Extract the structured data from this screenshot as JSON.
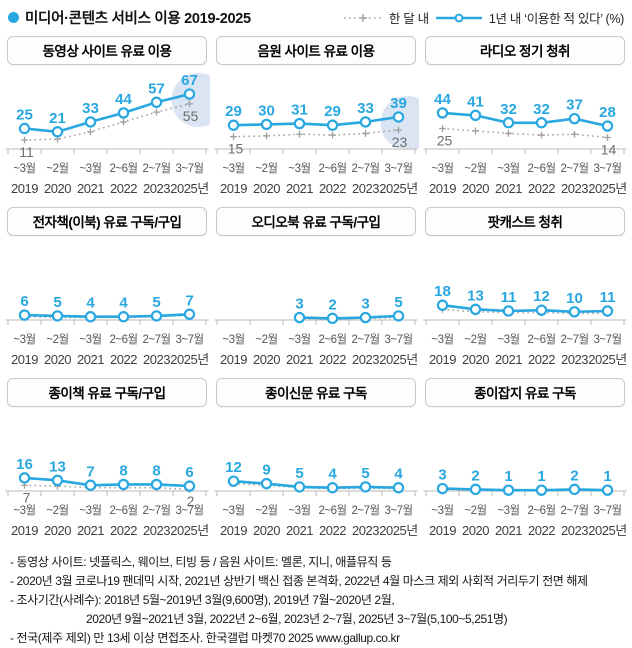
{
  "header": {
    "title": "미디어·콘텐츠 서비스 이용 2019-2025",
    "legend": {
      "dotted_label": "한 달 내",
      "blue_label": "1년 내  ‘이용한 적 있다’ (%)"
    }
  },
  "colors": {
    "blue": "#29a7e1",
    "dotted": "#9f9f9f",
    "dotted_label": "#6e6e6e",
    "highlight": "#dbe4f2",
    "axis": "#c6c6c6",
    "month_label": "#555555",
    "year_label": "#3f3f3f",
    "title_bullet": "#29a7e1"
  },
  "chart_data": {
    "type": "line",
    "unit": "%",
    "categories_month": [
      "~3월",
      "~2월",
      "~3월",
      "2~6월",
      "2~7월",
      "3~7월"
    ],
    "categories_year": [
      "2019",
      "2020",
      "2021",
      "2022",
      "2023",
      "2025년"
    ],
    "series_names": {
      "dotted": "한 달 내",
      "blue": "1년 내 이용한 적 있다"
    },
    "note": "dotted-series values without labels in the chart are estimated from pixel positions",
    "ylim": [
      0,
      80
    ],
    "panels": [
      {
        "title": "동영상 사이트 유료 이용",
        "blue": [
          25,
          21,
          33,
          44,
          57,
          67
        ],
        "dotted": [
          11,
          12,
          21,
          33,
          45,
          55
        ],
        "dotted_label_indices": [
          0,
          5
        ],
        "highlight_last": true
      },
      {
        "title": "음원 사이트 유료 이용",
        "blue": [
          29,
          30,
          31,
          29,
          33,
          39
        ],
        "dotted": [
          15,
          16,
          18,
          17,
          19,
          23
        ],
        "dotted_label_indices": [
          0,
          5
        ],
        "highlight_last": true
      },
      {
        "title": "라디오 정기 청취",
        "blue": [
          44,
          41,
          32,
          32,
          37,
          28
        ],
        "dotted": [
          25,
          22,
          19,
          17,
          18,
          14
        ],
        "dotted_label_indices": [
          0,
          5
        ],
        "highlight_last": false
      },
      {
        "title": "전자책(이북) 유료 구독/구입",
        "blue": [
          6,
          5,
          4,
          4,
          5,
          7
        ],
        "dotted": [
          4,
          3,
          3,
          3,
          4,
          6
        ],
        "dotted_label_indices": [],
        "highlight_last": false
      },
      {
        "title": "오디오북 유료 구독/구입",
        "blue": [
          null,
          null,
          3,
          2,
          3,
          5
        ],
        "dotted": [
          null,
          null,
          2,
          1,
          2,
          3
        ],
        "dotted_label_indices": [],
        "highlight_last": false
      },
      {
        "title": "팟캐스트 청취",
        "blue": [
          18,
          13,
          11,
          12,
          10,
          11
        ],
        "dotted": [
          13,
          10,
          9,
          9,
          8,
          8
        ],
        "dotted_label_indices": [],
        "highlight_last": false
      },
      {
        "title": "종이책 유료 구독/구입",
        "blue": [
          16,
          13,
          7,
          8,
          8,
          6
        ],
        "dotted": [
          7,
          6,
          4,
          4,
          4,
          2
        ],
        "dotted_label_indices": [
          0,
          5
        ],
        "highlight_last": false
      },
      {
        "title": "종이신문 유료 구독",
        "blue": [
          12,
          9,
          5,
          4,
          5,
          4
        ],
        "dotted": [
          9,
          7,
          4,
          3,
          3,
          3
        ],
        "dotted_label_indices": [],
        "highlight_last": false
      },
      {
        "title": "종이잡지 유료 구독",
        "blue": [
          3,
          2,
          1,
          1,
          2,
          1
        ],
        "dotted": [
          2,
          1,
          1,
          1,
          1,
          1
        ],
        "dotted_label_indices": [],
        "highlight_last": false
      }
    ]
  },
  "footnotes": [
    {
      "text": "- 동영상 사이트: 넷플릭스, 웨이브, 티빙 등 / 음원 사이트: 멜론, 지니, 애플뮤직 등",
      "indent": false
    },
    {
      "text": "- 2020년 3월 코로나19 팬데믹 시작, 2021년 상반기 백신 접종 본격화, 2022년 4월 마스크 제외 사회적 거리두기 전면 해제",
      "indent": false
    },
    {
      "text": "- 조사기간(사례수):  2018년 5월~2019년 3월(9,600명), 2019년 7월~2020년 2월,",
      "indent": false
    },
    {
      "text": "2020년 9월~2021년 3월, 2022년 2~6월, 2023년 2~7월, 2025년 3~7월(5,100~5,251명)",
      "indent": true
    },
    {
      "text": "- 전국(제주 제외) 만 13세 이상 면접조사. 한국갤럽 마켓70 2025 www.gallup.co.kr",
      "indent": false
    }
  ]
}
